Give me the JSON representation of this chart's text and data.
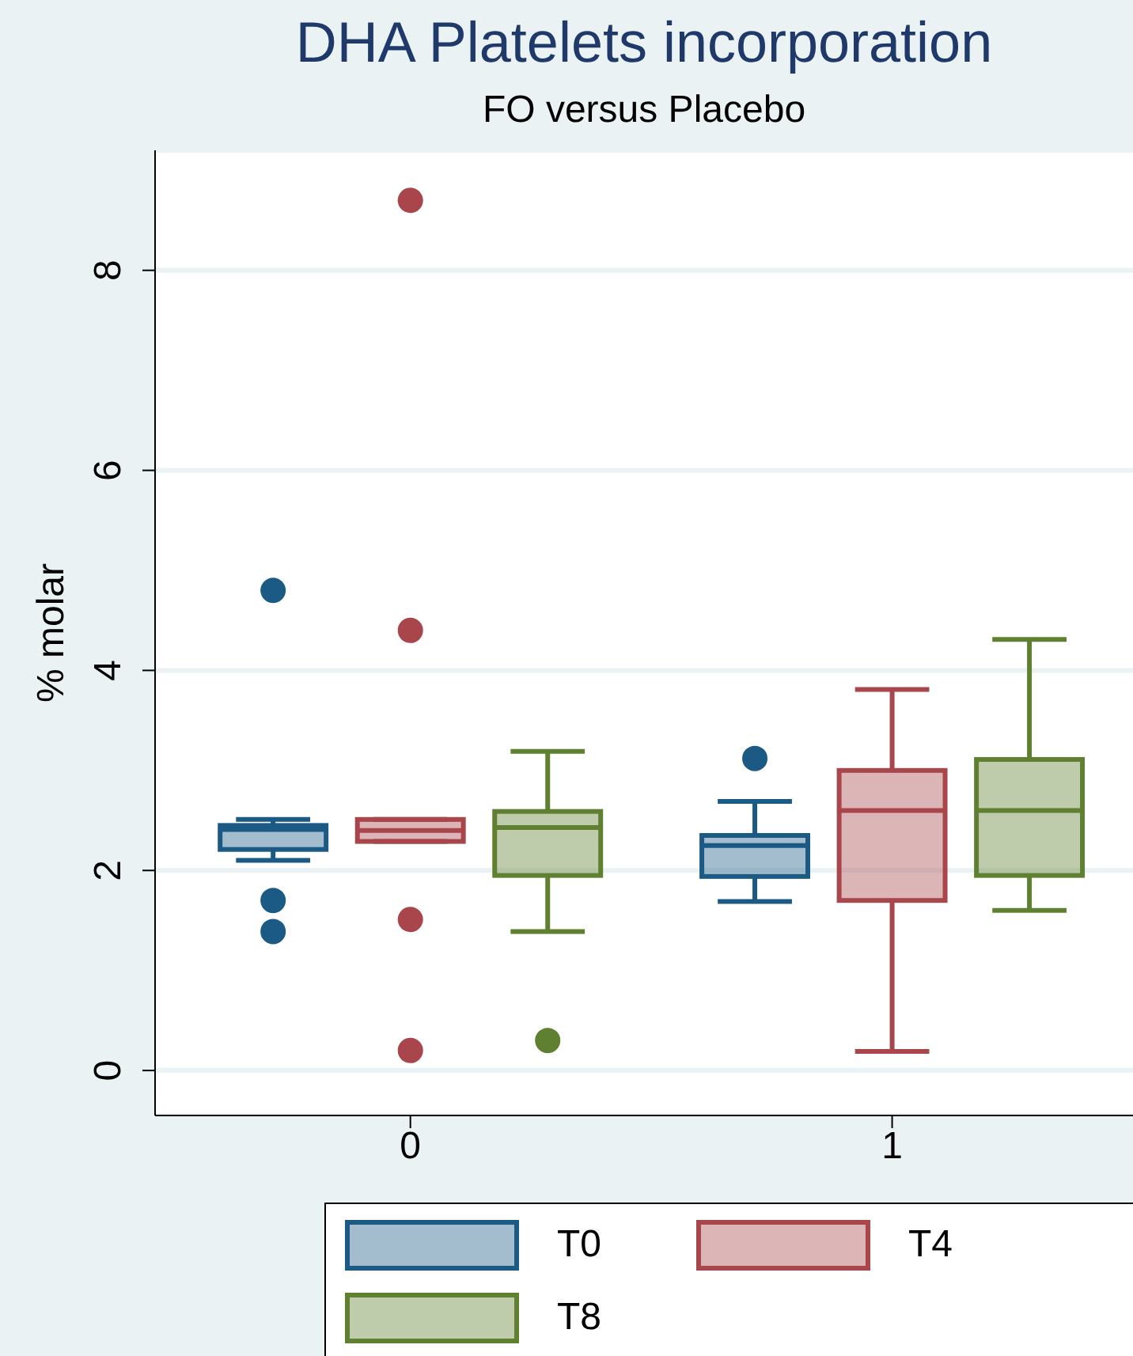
{
  "chart_data": {
    "type": "box",
    "title": "DHA Platelets incorporation",
    "subtitle": "FO versus Placebo",
    "ylabel": "% molar",
    "categories": [
      "0",
      "1"
    ],
    "series": [
      {
        "name": "T0",
        "color": "#1a5a84",
        "boxes": [
          {
            "low": 2.1,
            "q1": 2.21,
            "median": 2.41,
            "q3": 2.45,
            "high": 2.51,
            "outliers": [
              4.8,
              1.7,
              1.39
            ]
          },
          {
            "low": 1.69,
            "q1": 1.94,
            "median": 2.25,
            "q3": 2.35,
            "high": 2.69,
            "outliers": [
              3.12
            ]
          }
        ]
      },
      {
        "name": "T4",
        "color": "#a8464c",
        "boxes": [
          {
            "low": 2.29,
            "q1": 2.29,
            "median": 2.4,
            "q3": 2.51,
            "high": 2.51,
            "outliers": [
              8.7,
              4.4,
              1.51,
              0.2
            ]
          },
          {
            "low": 0.19,
            "q1": 1.7,
            "median": 2.6,
            "q3": 3.0,
            "high": 3.81
          }
        ]
      },
      {
        "name": "T8",
        "color": "#5e8030",
        "boxes": [
          {
            "low": 1.39,
            "q1": 1.95,
            "median": 2.43,
            "q3": 2.59,
            "high": 3.19,
            "outliers": [
              0.3
            ]
          },
          {
            "low": 1.6,
            "q1": 1.95,
            "median": 2.6,
            "q3": 3.11,
            "high": 4.31
          }
        ]
      }
    ],
    "ylim": [
      -0.45,
      9.2
    ],
    "yticks": [
      0,
      2,
      4,
      6,
      8
    ],
    "grid": "y",
    "legend": "bottom"
  }
}
